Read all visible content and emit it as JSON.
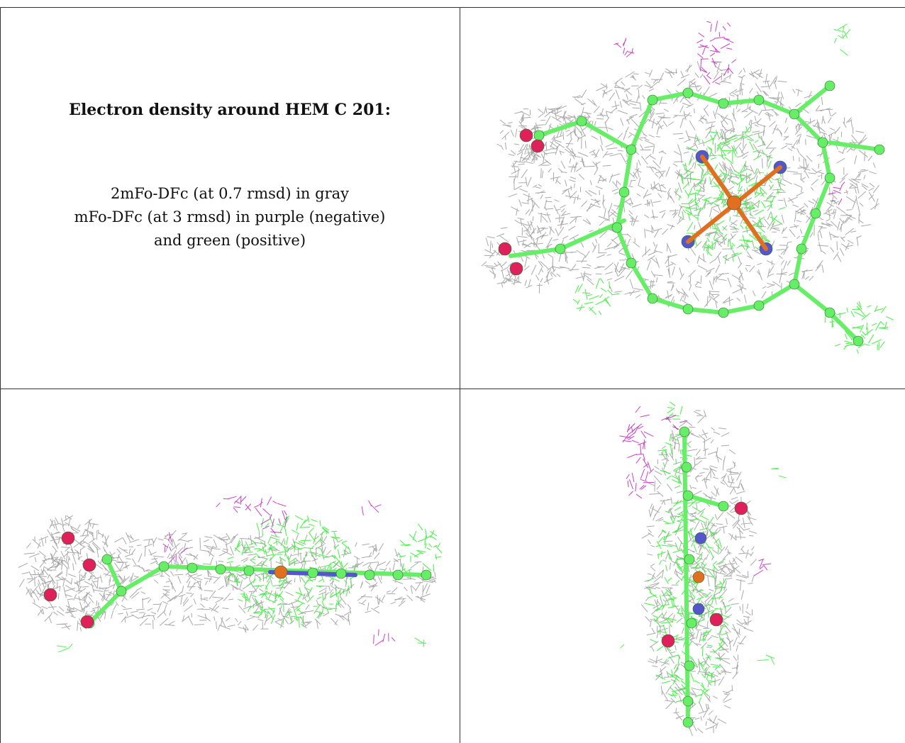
{
  "legend": {
    "title": "Electron density around HEM C 201:",
    "line1": "2mFo-DFc (at 0.7 rmsd) in gray",
    "line2": "mFo-DFc (at 3 rmsd) in purple (negative)",
    "line3": "and green (positive)"
  },
  "colors": {
    "mesh_gray": "#9a9a9a",
    "mesh_green": "#33ee33",
    "mesh_purple": "#c020c0",
    "atom_carbon": "#66ee66",
    "atom_nitrogen": "#5555cc",
    "atom_oxygen": "#e0205a",
    "atom_iron": "#e07020"
  },
  "panels": [
    {
      "name": "top-view"
    },
    {
      "name": "side-view"
    },
    {
      "name": "end-view"
    }
  ]
}
